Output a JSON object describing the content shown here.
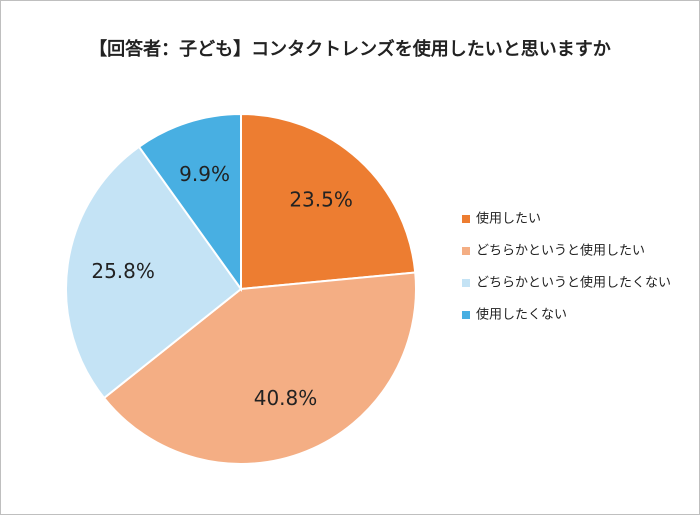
{
  "chart_data": {
    "type": "pie",
    "title": "【回答者：子ども】コンタクトレンズを使用したいと思いますか",
    "categories": [
      "使用したい",
      "どちらかというと使用したい",
      "どちらかというと使用したくない",
      "使用したくない"
    ],
    "values": [
      23.5,
      40.8,
      25.8,
      9.9
    ],
    "value_labels": [
      "23.5%",
      "40.8%",
      "25.8%",
      "9.9%"
    ],
    "colors": [
      "#ED7D31",
      "#F4AE84",
      "#C4E3F5",
      "#48AFE2"
    ],
    "legend": "right"
  }
}
